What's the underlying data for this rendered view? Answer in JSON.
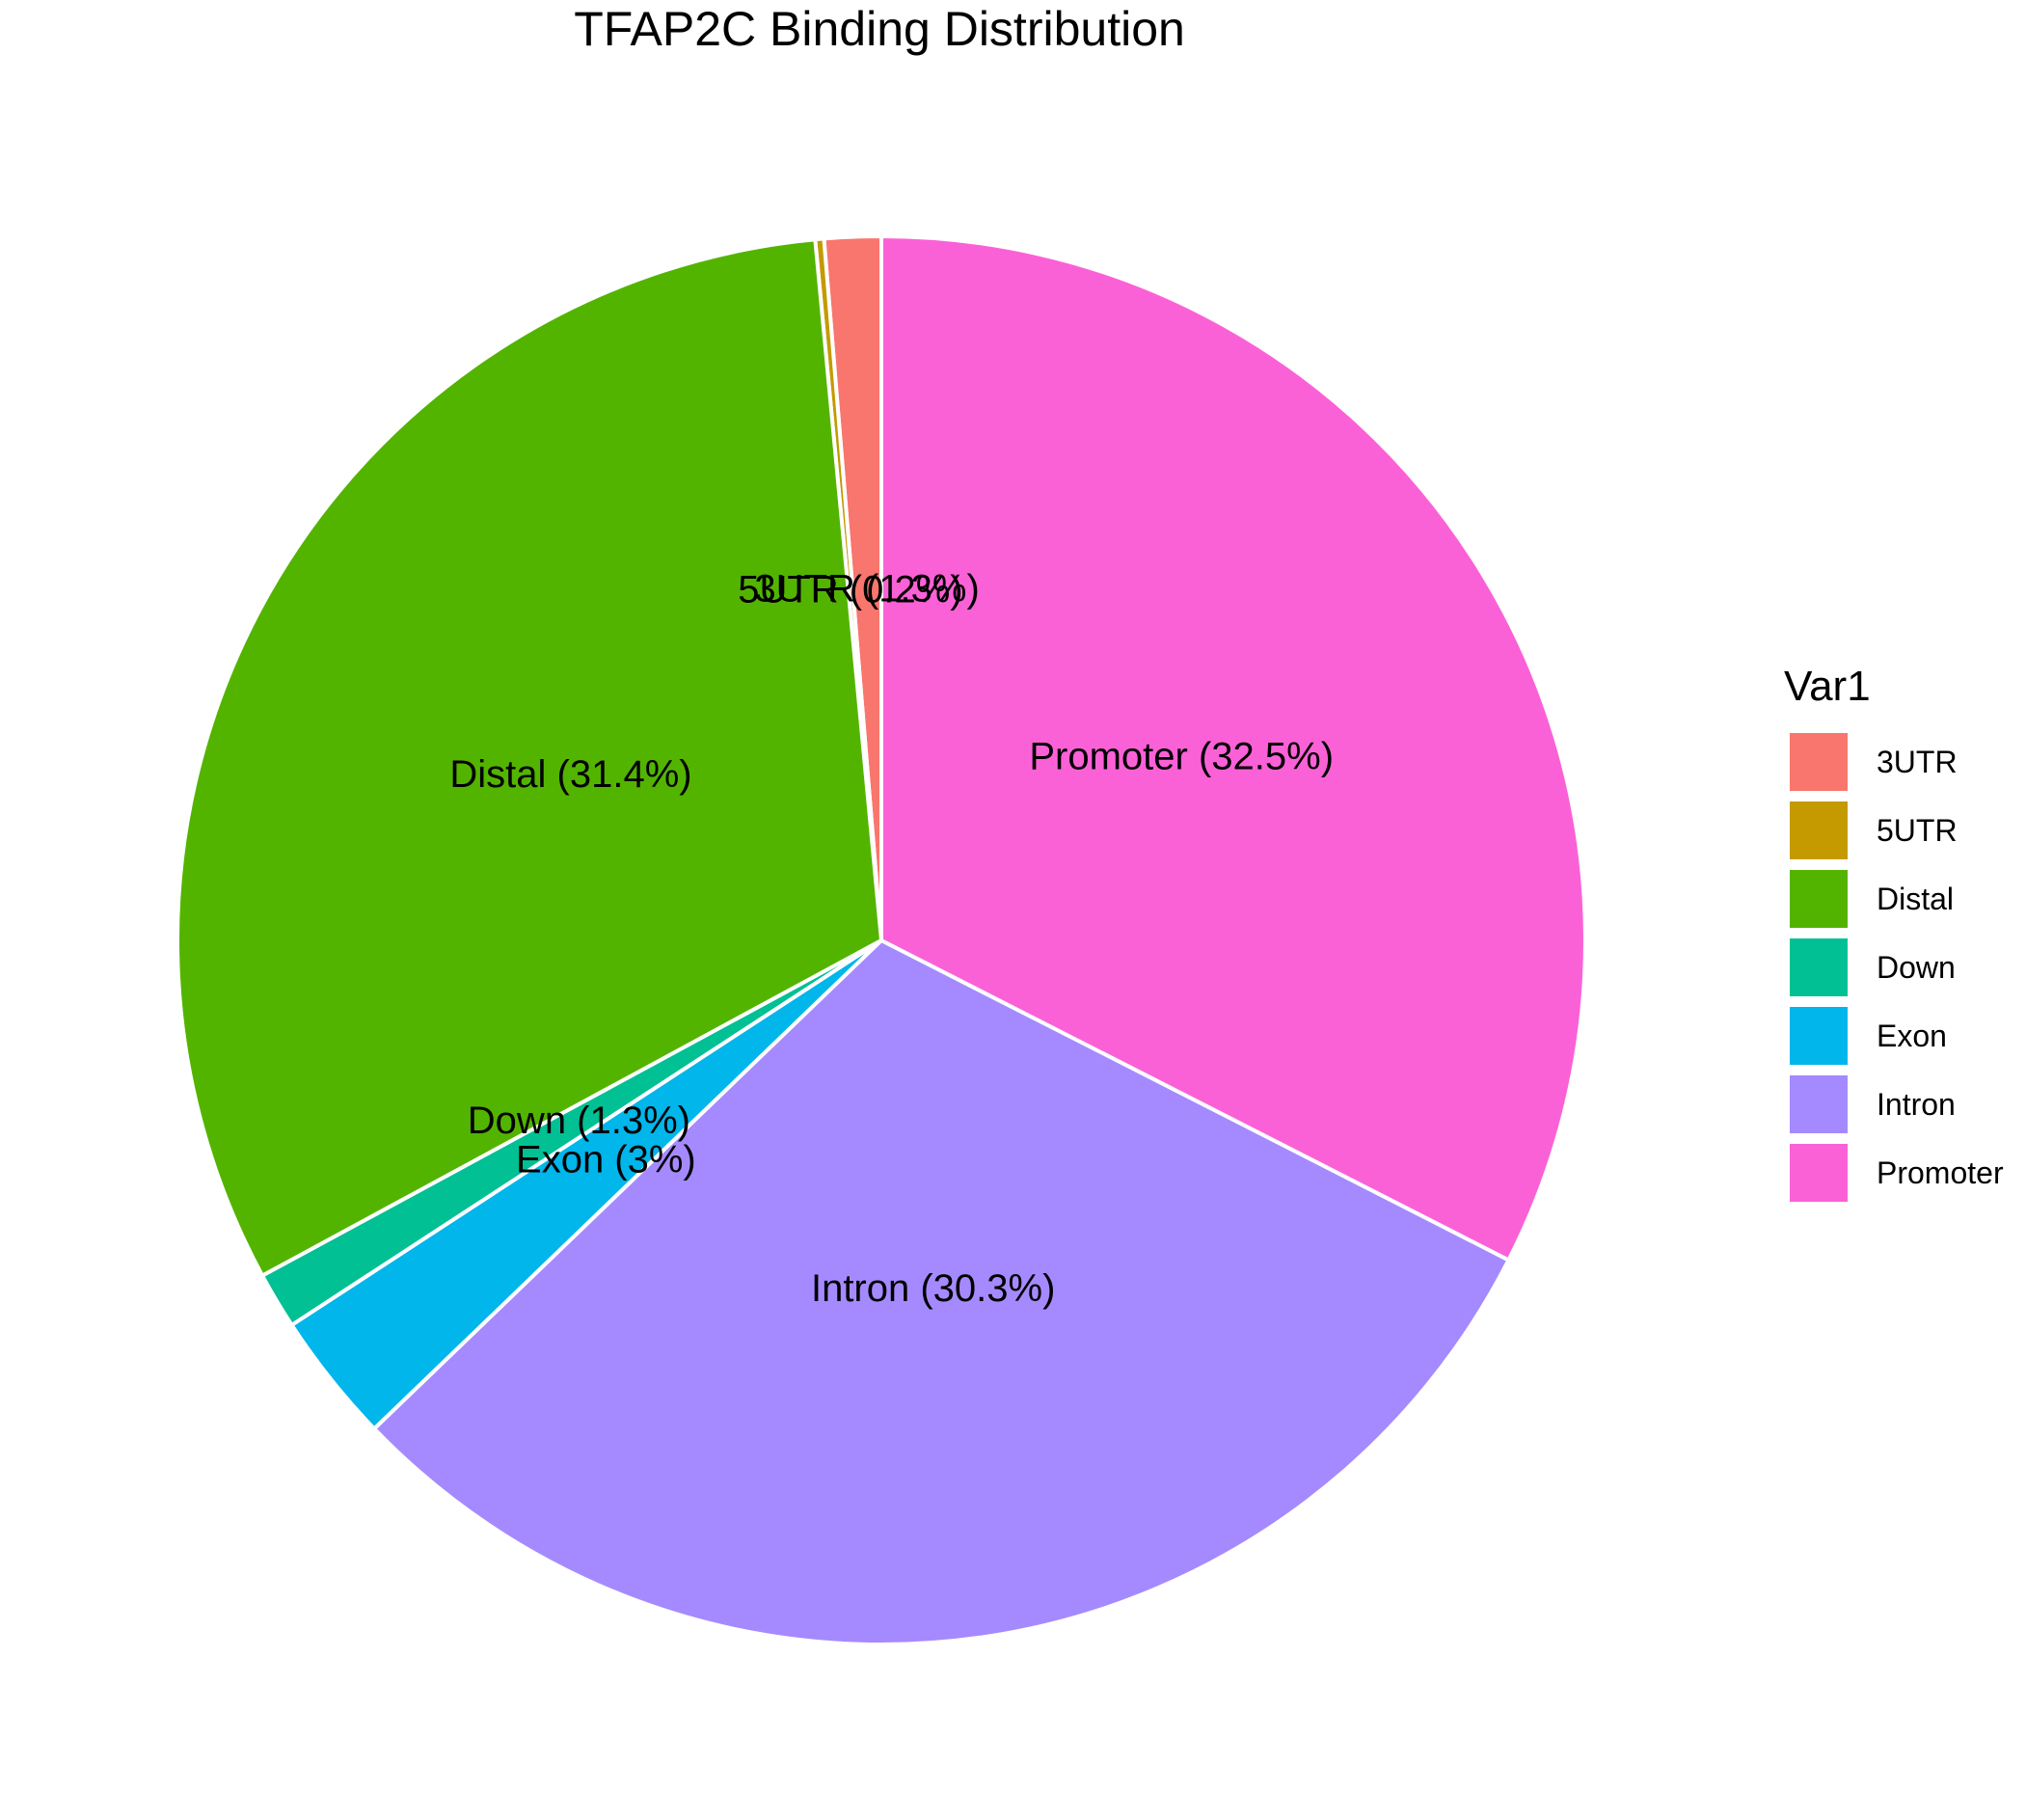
{
  "chart_data": {
    "type": "pie",
    "title": "TFAP2C Binding Distribution",
    "legend": {
      "title": "Var1",
      "placement": "right"
    },
    "slices": [
      {
        "name": "3UTR",
        "label": "3UTR (1.3%)",
        "value": 1.3,
        "color": "#F8766D"
      },
      {
        "name": "5UTR",
        "label": "5UTR (0.2%)",
        "value": 0.2,
        "color": "#C49A00"
      },
      {
        "name": "Distal",
        "label": "Distal (31.4%)",
        "value": 31.4,
        "color": "#53B400"
      },
      {
        "name": "Down",
        "label": "Down (1.3%)",
        "value": 1.3,
        "color": "#00C094"
      },
      {
        "name": "Exon",
        "label": "Exon (3%)",
        "value": 3,
        "color": "#00B6EB"
      },
      {
        "name": "Intron",
        "label": "Intron (30.3%)",
        "value": 30.3,
        "color": "#A58AFF"
      },
      {
        "name": "Promoter",
        "label": "Promoter (32.5%)",
        "value": 32.5,
        "color": "#FB61D7"
      }
    ],
    "direction": "counter-clockwise from 12 o'clock"
  }
}
